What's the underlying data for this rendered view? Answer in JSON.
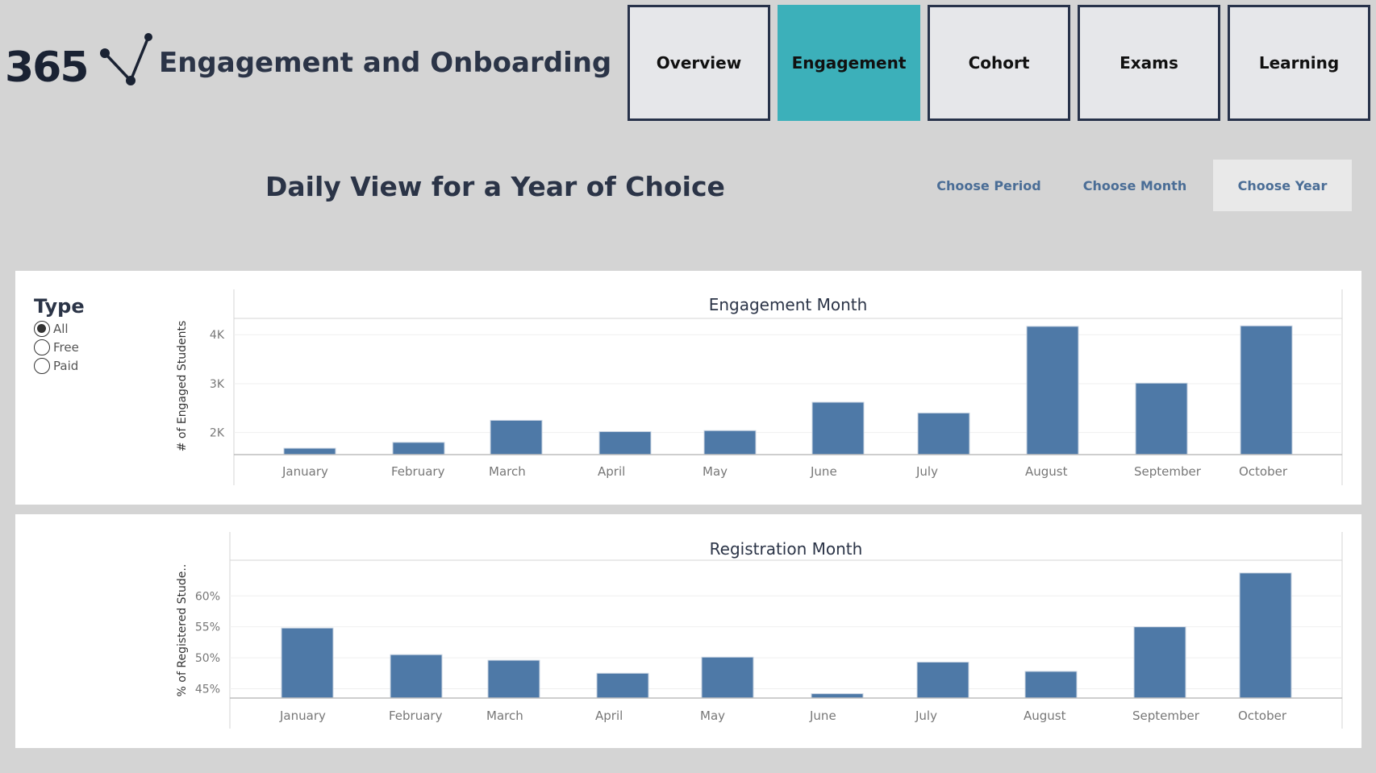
{
  "header": {
    "logo_text": "365",
    "title": "Engagement and Onboarding"
  },
  "nav": {
    "items": [
      {
        "label": "Overview",
        "active": false
      },
      {
        "label": "Engagement",
        "active": true
      },
      {
        "label": "Cohort",
        "active": false
      },
      {
        "label": "Exams",
        "active": false
      },
      {
        "label": "Learning",
        "active": false
      }
    ]
  },
  "page": {
    "title": "Daily View for a Year of Choice",
    "choose_period": "Choose Period",
    "choose_month": "Choose Month",
    "choose_year": "Choose Year"
  },
  "filter": {
    "title": "Type",
    "options": [
      {
        "label": "All",
        "selected": true
      },
      {
        "label": "Free",
        "selected": false
      },
      {
        "label": "Paid",
        "selected": false
      }
    ]
  },
  "colors": {
    "bar": "#4e79a7",
    "active_nav": "#3cb0ba",
    "nav_border": "#27324a"
  },
  "chart_data": [
    {
      "type": "bar",
      "title": "Engagement Month",
      "ylabel": "# of Engaged Students",
      "categories": [
        "January",
        "February",
        "March",
        "April",
        "May",
        "June",
        "July",
        "August",
        "September",
        "October"
      ],
      "values": [
        1680,
        1800,
        2250,
        2020,
        2040,
        2620,
        2400,
        4170,
        3010,
        4180
      ],
      "ylim": [
        1550,
        4300
      ],
      "yticks": [
        2000,
        3000,
        4000
      ],
      "ytick_labels": [
        "2K",
        "3K",
        "4K"
      ],
      "grid": true
    },
    {
      "type": "bar",
      "title": "Registration Month",
      "ylabel": "% of Registered Stude..",
      "categories": [
        "January",
        "February",
        "March",
        "April",
        "May",
        "June",
        "July",
        "August",
        "September",
        "October"
      ],
      "values": [
        54.8,
        50.5,
        49.6,
        47.5,
        50.1,
        44.2,
        49.3,
        47.8,
        55.0,
        63.7
      ],
      "ylim": [
        43.5,
        65.5
      ],
      "yticks": [
        45,
        50,
        55,
        60
      ],
      "ytick_labels": [
        "45%",
        "50%",
        "55%",
        "60%"
      ],
      "grid": true
    }
  ]
}
